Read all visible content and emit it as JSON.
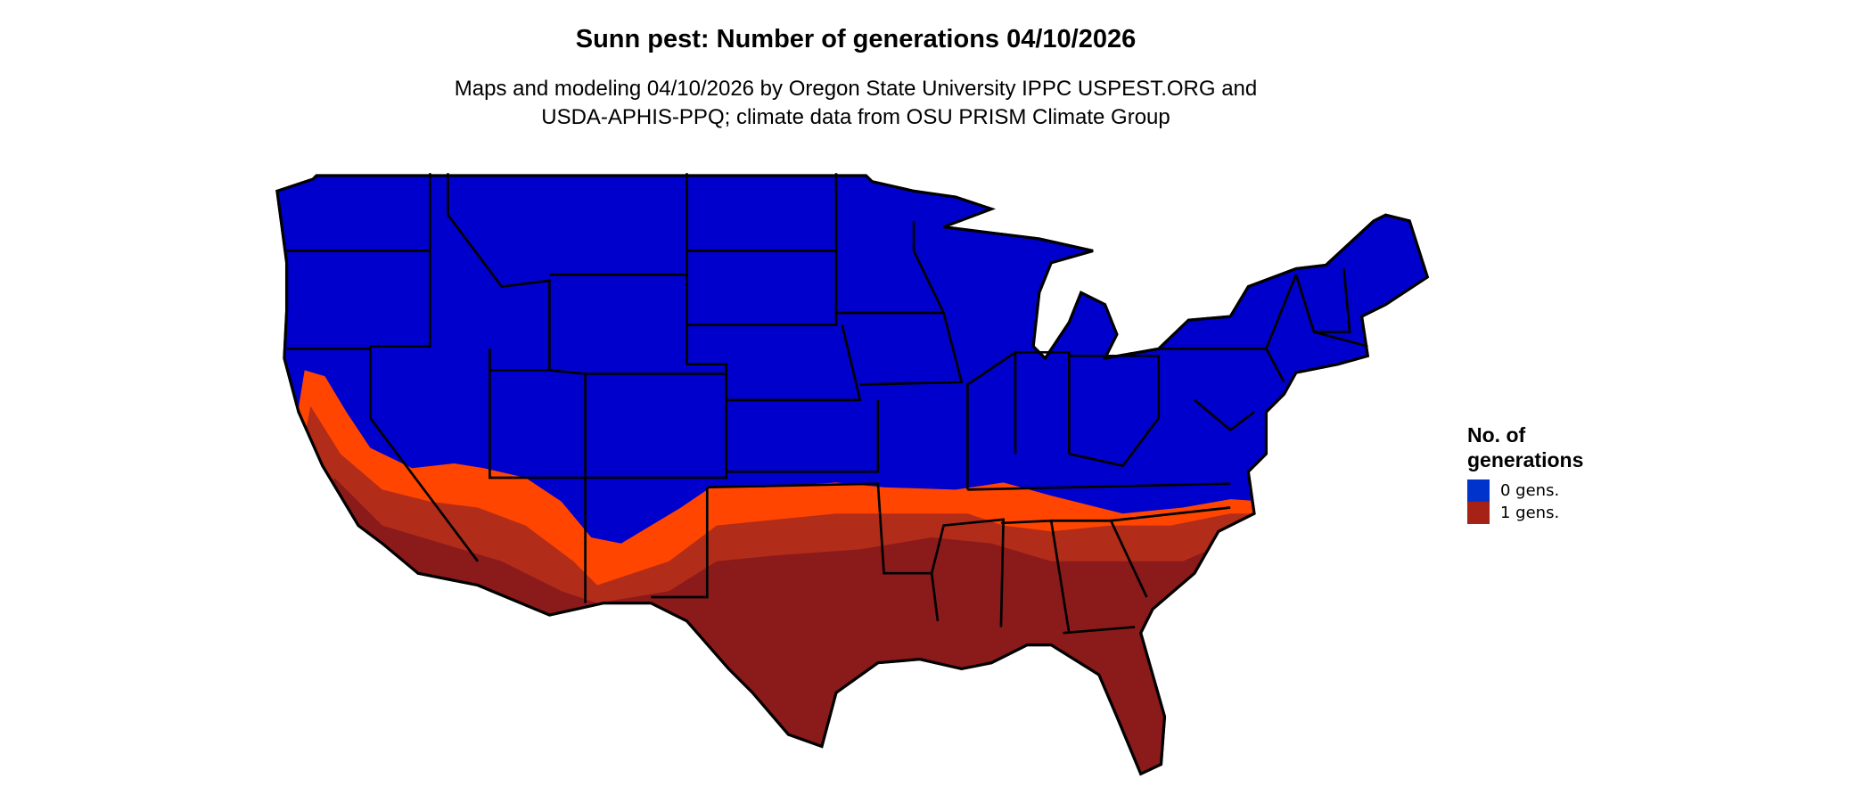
{
  "title": "Sunn pest: Number of generations 04/10/2026",
  "subtitle_line1": "Maps and modeling 04/10/2026 by Oregon State University IPPC USPEST.ORG and",
  "subtitle_line2": "USDA-APHIS-PPQ; climate data from OSU PRISM Climate Group",
  "legend": {
    "title_line1": "No. of",
    "title_line2": "generations",
    "items": [
      {
        "label": "0 gens.",
        "color": "#0033cc"
      },
      {
        "label": "1 gens.",
        "color": "#a62116"
      }
    ]
  },
  "map_colors": {
    "zero_gens": "#0000cc",
    "transition": "#ff4500",
    "one_gen_light": "#b22c1a",
    "one_gen": "#8b1a1a",
    "state_borders": "#000000"
  }
}
